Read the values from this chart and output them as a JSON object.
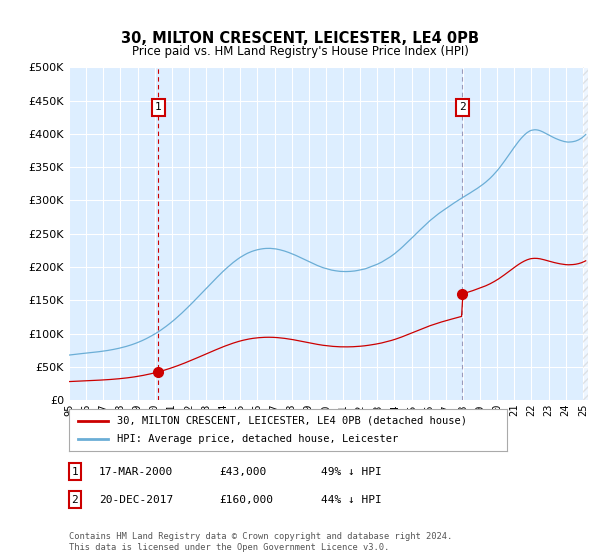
{
  "title": "30, MILTON CRESCENT, LEICESTER, LE4 0PB",
  "subtitle": "Price paid vs. HM Land Registry's House Price Index (HPI)",
  "purchase1_date": 2000.21,
  "purchase1_price": 43000,
  "purchase1_label": "1",
  "purchase1_text": "17-MAR-2000",
  "purchase1_price_text": "£43,000",
  "purchase1_hpi_text": "49% ↓ HPI",
  "purchase2_date": 2017.97,
  "purchase2_price": 160000,
  "purchase2_label": "2",
  "purchase2_text": "20-DEC-2017",
  "purchase2_price_text": "£160,000",
  "purchase2_hpi_text": "44% ↓ HPI",
  "ylim": [
    0,
    500000
  ],
  "xlim_left": 1995.0,
  "xlim_right": 2025.3,
  "hpi_color": "#6baed6",
  "price_color": "#cc0000",
  "vline1_color": "#cc0000",
  "vline2_color": "#9999bb",
  "bg_color": "#ddeeff",
  "plot_bg": "#ddeeff",
  "grid_color": "#ffffff",
  "legend_label1": "30, MILTON CRESCENT, LEICESTER, LE4 0PB (detached house)",
  "legend_label2": "HPI: Average price, detached house, Leicester",
  "footer": "Contains HM Land Registry data © Crown copyright and database right 2024.\nThis data is licensed under the Open Government Licence v3.0.",
  "xtick_years": [
    1995,
    1996,
    1997,
    1998,
    1999,
    2000,
    2001,
    2002,
    2003,
    2004,
    2005,
    2006,
    2007,
    2008,
    2009,
    2010,
    2011,
    2012,
    2013,
    2014,
    2015,
    2016,
    2017,
    2018,
    2019,
    2020,
    2021,
    2022,
    2023,
    2024,
    2025
  ],
  "yticks": [
    0,
    50000,
    100000,
    150000,
    200000,
    250000,
    300000,
    350000,
    400000,
    450000,
    500000
  ]
}
